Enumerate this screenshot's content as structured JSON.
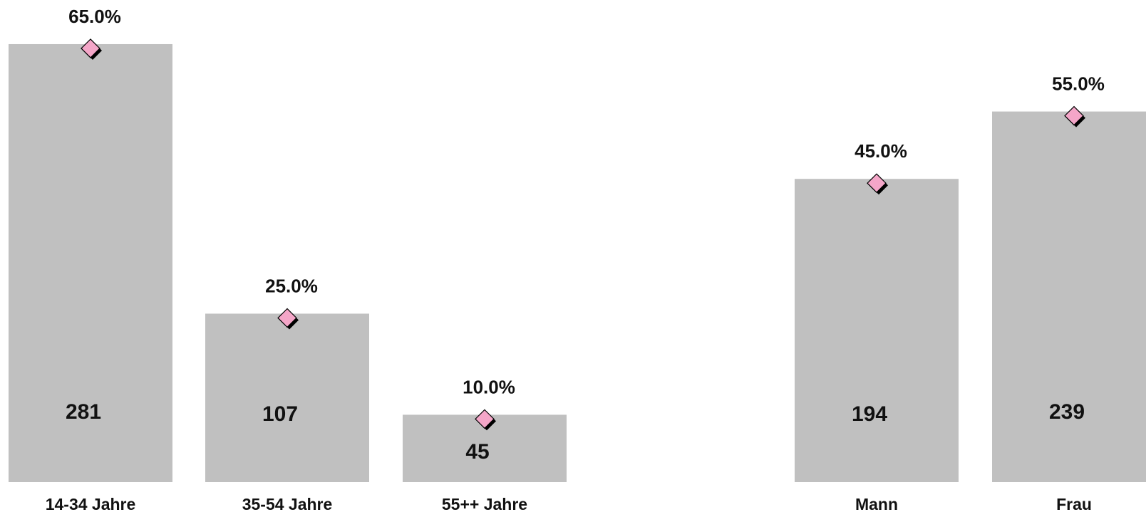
{
  "colors": {
    "bar": "#c0c0c0",
    "marker": "#f4a6c8",
    "marker_shadow": "#000000",
    "text": "#111111"
  },
  "chart_data": [
    {
      "type": "bar",
      "categories": [
        "14-34 Jahre",
        "35-54 Jahre",
        "55++ Jahre"
      ],
      "series": [
        {
          "values": [
            281,
            107,
            45
          ]
        },
        {
          "type": "scatter",
          "marker": "diamond",
          "values": [
            65.0,
            25.0,
            10.0
          ],
          "labels": [
            "65.0%",
            "25.0%",
            "10.0%"
          ]
        }
      ],
      "bar_labels": [
        "281",
        "107",
        "45"
      ]
    },
    {
      "type": "bar",
      "categories": [
        "Mann",
        "Frau"
      ],
      "series": [
        {
          "values": [
            194,
            239
          ]
        },
        {
          "type": "scatter",
          "marker": "diamond",
          "values": [
            45.0,
            55.0
          ],
          "labels": [
            "45.0%",
            "55.0%"
          ]
        }
      ],
      "bar_labels": [
        "194",
        "239"
      ]
    }
  ]
}
